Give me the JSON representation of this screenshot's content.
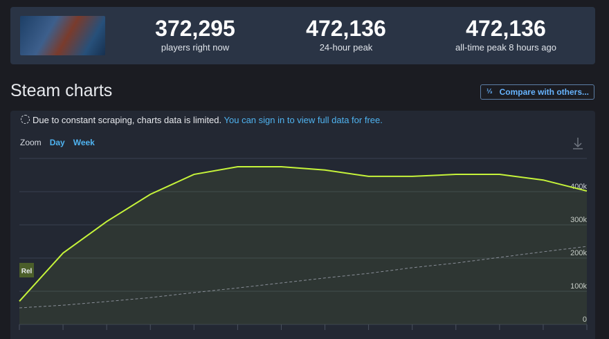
{
  "header": {
    "stats": [
      {
        "value": "372,295",
        "label": "players right now"
      },
      {
        "value": "472,136",
        "label": "24-hour peak"
      },
      {
        "value": "472,136",
        "label": "all-time peak 8 hours ago"
      }
    ]
  },
  "section_title": "Steam charts",
  "compare_button": "Compare with others...",
  "notice": {
    "text": "Due to constant scraping, charts data is limited.",
    "link": "You can sign in to view full data for free."
  },
  "zoom": {
    "label": "Zoom",
    "options": [
      "Day",
      "Week"
    ]
  },
  "chart_data": {
    "type": "line",
    "categories": [
      null,
      null,
      null,
      null,
      null,
      null,
      null,
      null,
      null,
      null,
      null,
      null,
      null,
      null
    ],
    "series": [
      {
        "color": "#c6f43a",
        "values": [
          70000,
          215000,
          310000,
          392000,
          452000,
          475000,
          475000,
          465000,
          446000,
          446000,
          452000,
          452000,
          435000,
          402000
        ]
      },
      {
        "color": "#8a8f99",
        "values": [
          50000,
          58000,
          69000,
          81000,
          96000,
          110000,
          125000,
          140000,
          154000,
          171000,
          185000,
          202000,
          219000,
          235000
        ]
      }
    ],
    "ylim": [
      0,
      500000
    ],
    "yticks": [
      {
        "value": 0,
        "label": "0"
      },
      {
        "value": 100000,
        "label": "100k"
      },
      {
        "value": 200000,
        "label": "200k"
      },
      {
        "value": 300000,
        "label": "300k"
      },
      {
        "value": 400000,
        "label": "400k"
      }
    ],
    "grid": true,
    "annotation": "Rel"
  }
}
